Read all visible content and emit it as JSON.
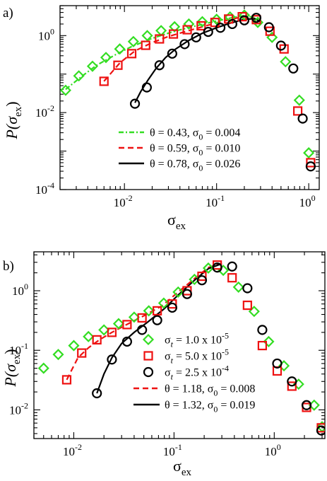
{
  "colors": {
    "green": "#33dd22",
    "red": "#ee1111",
    "black": "#000000"
  },
  "chart_data": [
    {
      "type": "scatter",
      "panel_label": "a)",
      "xlabel": {
        "main": "σ",
        "sub": "ex"
      },
      "ylabel": {
        "main": "P(σ",
        "sub": "ex",
        "close": ")"
      },
      "xscale": "log",
      "yscale": "log",
      "xlim": [
        0.002,
        1.3
      ],
      "ylim": [
        0.0001,
        6
      ],
      "xticks": [
        {
          "v": 0.01,
          "b": "10",
          "e": "-2"
        },
        {
          "v": 0.1,
          "b": "10",
          "e": "-1"
        },
        {
          "v": 1,
          "b": "10",
          "e": "0"
        }
      ],
      "yticks": [
        {
          "v": 0.0001,
          "b": "10",
          "e": "-4"
        },
        {
          "v": 0.01,
          "b": "10",
          "e": "-2"
        },
        {
          "v": 1,
          "b": "10",
          "e": "0"
        }
      ],
      "series": [
        {
          "color": "green",
          "marker": "diamond",
          "x": [
            0.0023,
            0.0032,
            0.0045,
            0.0063,
            0.0089,
            0.0125,
            0.0177,
            0.025,
            0.035,
            0.05,
            0.07,
            0.1,
            0.14,
            0.2,
            0.28,
            0.4,
            0.56,
            0.79,
            1.0
          ],
          "y": [
            0.038,
            0.09,
            0.16,
            0.27,
            0.45,
            0.7,
            1.0,
            1.35,
            1.7,
            2.0,
            2.3,
            2.65,
            3.05,
            3.4,
            2.2,
            0.9,
            0.21,
            0.021,
            0.0009
          ]
        },
        {
          "color": "red",
          "marker": "square",
          "x": [
            0.006,
            0.0085,
            0.012,
            0.017,
            0.024,
            0.034,
            0.048,
            0.068,
            0.096,
            0.135,
            0.19,
            0.27,
            0.38,
            0.54,
            0.76,
            1.05
          ],
          "y": [
            0.065,
            0.17,
            0.34,
            0.56,
            0.82,
            1.1,
            1.42,
            1.8,
            2.2,
            2.7,
            3.1,
            2.6,
            1.3,
            0.45,
            0.011,
            0.0005
          ]
        },
        {
          "color": "black",
          "marker": "circle",
          "x": [
            0.013,
            0.0175,
            0.024,
            0.033,
            0.045,
            0.06,
            0.081,
            0.11,
            0.148,
            0.2,
            0.27,
            0.37,
            0.5,
            0.68,
            0.86,
            1.05
          ],
          "y": [
            0.017,
            0.045,
            0.17,
            0.34,
            0.6,
            0.9,
            1.25,
            1.6,
            2.0,
            2.5,
            2.9,
            1.65,
            0.55,
            0.14,
            0.007,
            0.0004
          ]
        }
      ],
      "fits": [
        {
          "color": "green",
          "dash": "7 3 2 3",
          "x": [
            0.0023,
            0.0035,
            0.005,
            0.008,
            0.012,
            0.02,
            0.035,
            0.06,
            0.1,
            0.15,
            0.2,
            0.25,
            0.3
          ],
          "y": [
            0.04,
            0.09,
            0.17,
            0.32,
            0.52,
            0.85,
            1.3,
            1.8,
            2.4,
            2.95,
            3.3,
            3.0,
            2.3
          ]
        },
        {
          "color": "red",
          "dash": "8 5",
          "x": [
            0.006,
            0.009,
            0.013,
            0.02,
            0.03,
            0.05,
            0.08,
            0.12,
            0.17,
            0.22,
            0.3
          ],
          "y": [
            0.065,
            0.2,
            0.4,
            0.66,
            0.95,
            1.35,
            1.85,
            2.4,
            2.9,
            3.1,
            2.3
          ]
        },
        {
          "color": "black",
          "dash": "",
          "x": [
            0.013,
            0.015,
            0.018,
            0.022,
            0.028,
            0.036,
            0.05,
            0.07,
            0.1,
            0.14,
            0.2,
            0.26,
            0.3
          ],
          "y": [
            0.018,
            0.035,
            0.07,
            0.14,
            0.27,
            0.45,
            0.75,
            1.15,
            1.6,
            2.1,
            2.65,
            2.75,
            2.3
          ]
        }
      ],
      "legend": [
        {
          "color": "green",
          "kind": "line",
          "dash": "7 3 2 3",
          "text": "θ = 0.43,  σ",
          "sub": "0",
          "tail": " = 0.004"
        },
        {
          "color": "red",
          "kind": "line",
          "dash": "8 5",
          "text": "θ = 0.59,  σ",
          "sub": "0",
          "tail": " = 0.010"
        },
        {
          "color": "black",
          "kind": "line",
          "dash": "",
          "text": "θ = 0.78,  σ",
          "sub": "0",
          "tail": " = 0.026"
        }
      ]
    },
    {
      "type": "scatter",
      "panel_label": "b)",
      "xlabel": {
        "main": "σ",
        "sub": "ex"
      },
      "ylabel": {
        "main": "P(σ",
        "sub": "ex",
        "close": ")"
      },
      "xscale": "log",
      "yscale": "log",
      "xlim": [
        0.004,
        3.2
      ],
      "ylim": [
        0.0033,
        4.5
      ],
      "xticks": [
        {
          "v": 0.01,
          "b": "10",
          "e": "-2"
        },
        {
          "v": 0.1,
          "b": "10",
          "e": "-1"
        },
        {
          "v": 1,
          "b": "10",
          "e": "0"
        }
      ],
      "yticks": [
        {
          "v": 0.01,
          "b": "10",
          "e": "-2"
        },
        {
          "v": 0.1,
          "b": "10",
          "e": "-1"
        },
        {
          "v": 1,
          "b": "10",
          "e": "0"
        }
      ],
      "series": [
        {
          "color": "green",
          "marker": "diamond",
          "x": [
            0.005,
            0.007,
            0.01,
            0.014,
            0.02,
            0.028,
            0.04,
            0.056,
            0.079,
            0.11,
            0.16,
            0.22,
            0.31,
            0.44,
            0.63,
            0.88,
            1.25,
            1.75,
            2.5,
            3.0
          ],
          "y": [
            0.05,
            0.085,
            0.12,
            0.17,
            0.22,
            0.28,
            0.36,
            0.46,
            0.62,
            0.95,
            1.55,
            2.4,
            2.2,
            1.15,
            0.45,
            0.14,
            0.055,
            0.027,
            0.012,
            0.0052
          ]
        },
        {
          "color": "red",
          "marker": "square",
          "x": [
            0.0085,
            0.012,
            0.017,
            0.024,
            0.034,
            0.048,
            0.068,
            0.096,
            0.135,
            0.19,
            0.27,
            0.38,
            0.54,
            0.76,
            1.07,
            1.5,
            2.1,
            2.95
          ],
          "y": [
            0.032,
            0.09,
            0.15,
            0.2,
            0.27,
            0.35,
            0.46,
            0.6,
            1.0,
            1.75,
            2.7,
            1.65,
            0.57,
            0.12,
            0.045,
            0.025,
            0.011,
            0.005
          ]
        },
        {
          "color": "black",
          "marker": "circle",
          "x": [
            0.017,
            0.024,
            0.034,
            0.048,
            0.068,
            0.096,
            0.135,
            0.19,
            0.27,
            0.38,
            0.54,
            0.76,
            1.07,
            1.5,
            2.1,
            2.95
          ],
          "y": [
            0.019,
            0.07,
            0.14,
            0.22,
            0.32,
            0.52,
            0.88,
            1.5,
            2.45,
            2.55,
            1.1,
            0.22,
            0.06,
            0.03,
            0.012,
            0.0045
          ]
        }
      ],
      "fits": [
        {
          "color": "red",
          "dash": "8 5",
          "x": [
            0.0085,
            0.011,
            0.014,
            0.018,
            0.024,
            0.035,
            0.05,
            0.075,
            0.11,
            0.16,
            0.22,
            0.3
          ],
          "y": [
            0.032,
            0.075,
            0.11,
            0.15,
            0.2,
            0.28,
            0.38,
            0.55,
            0.95,
            1.6,
            2.45,
            2.9
          ]
        },
        {
          "color": "black",
          "dash": "",
          "x": [
            0.017,
            0.02,
            0.024,
            0.03,
            0.04,
            0.055,
            0.08,
            0.11,
            0.16,
            0.22,
            0.3
          ],
          "y": [
            0.019,
            0.04,
            0.075,
            0.13,
            0.2,
            0.3,
            0.5,
            0.85,
            1.5,
            2.35,
            2.85
          ]
        }
      ],
      "legend": [
        {
          "color": "green",
          "kind": "diamond",
          "text": "σ",
          "sub": "t",
          "tail": " = 1.0 x 10",
          "sup": "-5"
        },
        {
          "color": "red",
          "kind": "square",
          "text": "σ",
          "sub": "t",
          "tail": " = 5.0 x 10",
          "sup": "-5"
        },
        {
          "color": "black",
          "kind": "circle",
          "text": "σ",
          "sub": "t",
          "tail": " = 2.5 x 10",
          "sup": "-4"
        },
        {
          "color": "red",
          "kind": "line",
          "dash": "8 5",
          "text": "θ = 1.18,  σ",
          "sub": "0",
          "tail": " = 0.008"
        },
        {
          "color": "black",
          "kind": "line",
          "dash": "",
          "text": "θ = 1.32,  σ",
          "sub": "0",
          "tail": " = 0.019"
        }
      ]
    }
  ]
}
